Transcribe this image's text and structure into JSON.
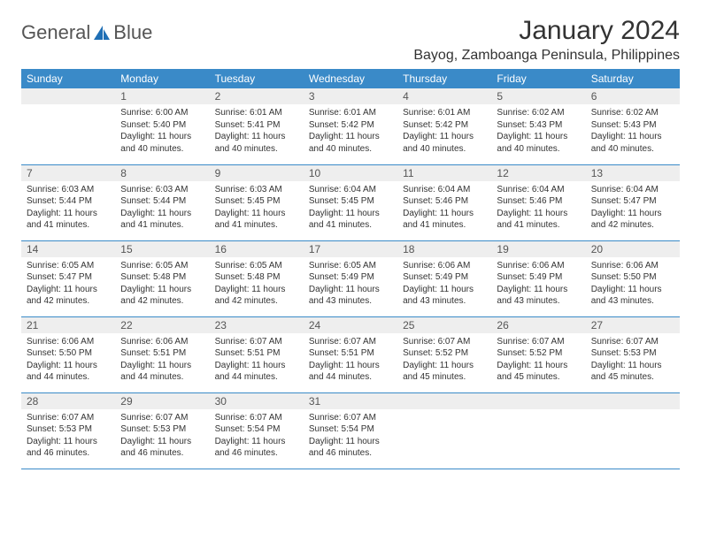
{
  "brand": {
    "text1": "General",
    "text2": "Blue"
  },
  "title": "January 2024",
  "location": "Bayog, Zamboanga Peninsula, Philippines",
  "colors": {
    "header_bg": "#3a8ac8",
    "header_fg": "#ffffff",
    "daynum_bg": "#eeeeee",
    "row_border": "#3a8ac8",
    "text": "#333333",
    "logo_blue": "#1f6fb5"
  },
  "weekdays": [
    "Sunday",
    "Monday",
    "Tuesday",
    "Wednesday",
    "Thursday",
    "Friday",
    "Saturday"
  ],
  "start_offset": 1,
  "days": [
    {
      "n": 1,
      "sr": "6:00 AM",
      "ss": "5:40 PM",
      "dl": "11 hours and 40 minutes."
    },
    {
      "n": 2,
      "sr": "6:01 AM",
      "ss": "5:41 PM",
      "dl": "11 hours and 40 minutes."
    },
    {
      "n": 3,
      "sr": "6:01 AM",
      "ss": "5:42 PM",
      "dl": "11 hours and 40 minutes."
    },
    {
      "n": 4,
      "sr": "6:01 AM",
      "ss": "5:42 PM",
      "dl": "11 hours and 40 minutes."
    },
    {
      "n": 5,
      "sr": "6:02 AM",
      "ss": "5:43 PM",
      "dl": "11 hours and 40 minutes."
    },
    {
      "n": 6,
      "sr": "6:02 AM",
      "ss": "5:43 PM",
      "dl": "11 hours and 40 minutes."
    },
    {
      "n": 7,
      "sr": "6:03 AM",
      "ss": "5:44 PM",
      "dl": "11 hours and 41 minutes."
    },
    {
      "n": 8,
      "sr": "6:03 AM",
      "ss": "5:44 PM",
      "dl": "11 hours and 41 minutes."
    },
    {
      "n": 9,
      "sr": "6:03 AM",
      "ss": "5:45 PM",
      "dl": "11 hours and 41 minutes."
    },
    {
      "n": 10,
      "sr": "6:04 AM",
      "ss": "5:45 PM",
      "dl": "11 hours and 41 minutes."
    },
    {
      "n": 11,
      "sr": "6:04 AM",
      "ss": "5:46 PM",
      "dl": "11 hours and 41 minutes."
    },
    {
      "n": 12,
      "sr": "6:04 AM",
      "ss": "5:46 PM",
      "dl": "11 hours and 41 minutes."
    },
    {
      "n": 13,
      "sr": "6:04 AM",
      "ss": "5:47 PM",
      "dl": "11 hours and 42 minutes."
    },
    {
      "n": 14,
      "sr": "6:05 AM",
      "ss": "5:47 PM",
      "dl": "11 hours and 42 minutes."
    },
    {
      "n": 15,
      "sr": "6:05 AM",
      "ss": "5:48 PM",
      "dl": "11 hours and 42 minutes."
    },
    {
      "n": 16,
      "sr": "6:05 AM",
      "ss": "5:48 PM",
      "dl": "11 hours and 42 minutes."
    },
    {
      "n": 17,
      "sr": "6:05 AM",
      "ss": "5:49 PM",
      "dl": "11 hours and 43 minutes."
    },
    {
      "n": 18,
      "sr": "6:06 AM",
      "ss": "5:49 PM",
      "dl": "11 hours and 43 minutes."
    },
    {
      "n": 19,
      "sr": "6:06 AM",
      "ss": "5:49 PM",
      "dl": "11 hours and 43 minutes."
    },
    {
      "n": 20,
      "sr": "6:06 AM",
      "ss": "5:50 PM",
      "dl": "11 hours and 43 minutes."
    },
    {
      "n": 21,
      "sr": "6:06 AM",
      "ss": "5:50 PM",
      "dl": "11 hours and 44 minutes."
    },
    {
      "n": 22,
      "sr": "6:06 AM",
      "ss": "5:51 PM",
      "dl": "11 hours and 44 minutes."
    },
    {
      "n": 23,
      "sr": "6:07 AM",
      "ss": "5:51 PM",
      "dl": "11 hours and 44 minutes."
    },
    {
      "n": 24,
      "sr": "6:07 AM",
      "ss": "5:51 PM",
      "dl": "11 hours and 44 minutes."
    },
    {
      "n": 25,
      "sr": "6:07 AM",
      "ss": "5:52 PM",
      "dl": "11 hours and 45 minutes."
    },
    {
      "n": 26,
      "sr": "6:07 AM",
      "ss": "5:52 PM",
      "dl": "11 hours and 45 minutes."
    },
    {
      "n": 27,
      "sr": "6:07 AM",
      "ss": "5:53 PM",
      "dl": "11 hours and 45 minutes."
    },
    {
      "n": 28,
      "sr": "6:07 AM",
      "ss": "5:53 PM",
      "dl": "11 hours and 46 minutes."
    },
    {
      "n": 29,
      "sr": "6:07 AM",
      "ss": "5:53 PM",
      "dl": "11 hours and 46 minutes."
    },
    {
      "n": 30,
      "sr": "6:07 AM",
      "ss": "5:54 PM",
      "dl": "11 hours and 46 minutes."
    },
    {
      "n": 31,
      "sr": "6:07 AM",
      "ss": "5:54 PM",
      "dl": "11 hours and 46 minutes."
    }
  ],
  "labels": {
    "sunrise": "Sunrise:",
    "sunset": "Sunset:",
    "daylight": "Daylight:"
  }
}
